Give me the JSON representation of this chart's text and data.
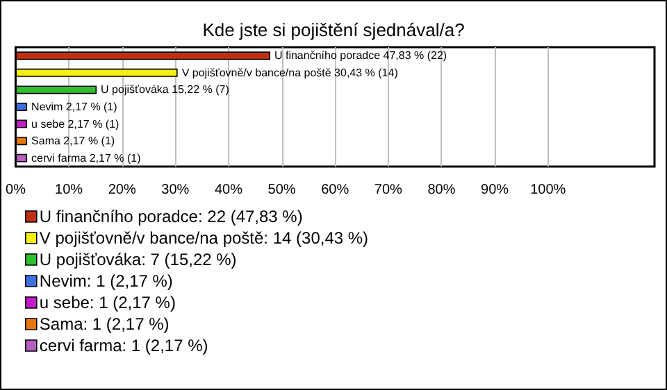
{
  "chart_data": {
    "type": "bar",
    "orientation": "horizontal",
    "stacked": true,
    "title": "Kde jste si pojištění sjednával/a?",
    "categories": [
      null,
      null,
      null,
      null,
      null,
      null,
      null
    ],
    "series": [
      {
        "name": "U finančního poradce: 22 (47,83 %)",
        "color": "#c0300f",
        "values": [
          47.83,
          null,
          null,
          null,
          null,
          null,
          null
        ],
        "value_labels": [
          "U finančního poradce 47,83 % (22)",
          null,
          null,
          null,
          null,
          null,
          null
        ]
      },
      {
        "name": "V pojišťovně/v bance/na poště: 14 (30,43 %)",
        "color": "#f5f010",
        "values": [
          null,
          30.43,
          null,
          null,
          null,
          null,
          null
        ],
        "value_labels": [
          null,
          "V pojišťovně/v bance/na poště 30,43 % (14)",
          null,
          null,
          null,
          null,
          null
        ]
      },
      {
        "name": "U pojišťováka: 7 (15,22 %)",
        "color": "#2ec02e",
        "values": [
          null,
          null,
          15.22,
          null,
          null,
          null,
          null
        ],
        "value_labels": [
          null,
          null,
          "U pojišťováka 15,22 % (7)",
          null,
          null,
          null,
          null
        ]
      },
      {
        "name": "Nevim: 1 (2,17 %)",
        "color": "#3d6fe0",
        "values": [
          null,
          null,
          null,
          2.17,
          null,
          null,
          null
        ],
        "value_labels": [
          null,
          null,
          null,
          "Nevim 2,17 % (1)",
          null,
          null,
          null
        ]
      },
      {
        "name": "u sebe: 1 (2,17 %)",
        "color": "#c21cc8",
        "values": [
          null,
          null,
          null,
          null,
          2.17,
          null,
          null
        ],
        "value_labels": [
          null,
          null,
          null,
          null,
          "u sebe 2,17 % (1)",
          null,
          null
        ]
      },
      {
        "name": "Sama: 1 (2,17 %)",
        "color": "#e6760f",
        "values": [
          null,
          null,
          null,
          null,
          null,
          2.17,
          null
        ],
        "value_labels": [
          null,
          null,
          null,
          null,
          null,
          "Sama 2,17 % (1)",
          null
        ]
      },
      {
        "name": "cervi farma: 1 (2,17 %)",
        "color": "#b45ec0",
        "values": [
          null,
          null,
          null,
          null,
          null,
          null,
          2.17
        ],
        "value_labels": [
          null,
          null,
          null,
          null,
          null,
          null,
          "cervi farma 2,17 % (1)"
        ]
      }
    ],
    "xlim": [
      0,
      120
    ],
    "xticks": [
      {
        "value": 0,
        "label": "0%"
      },
      {
        "value": 10,
        "label": "10%"
      },
      {
        "value": 20,
        "label": "20%"
      },
      {
        "value": 30,
        "label": "30%"
      },
      {
        "value": 40,
        "label": "40%"
      },
      {
        "value": 50,
        "label": "50%"
      },
      {
        "value": 60,
        "label": "60%"
      },
      {
        "value": 70,
        "label": "70%"
      },
      {
        "value": 80,
        "label": "80%"
      },
      {
        "value": 90,
        "label": "90%"
      },
      {
        "value": 100,
        "label": "100%"
      }
    ],
    "grid": "x",
    "legend": "bottom"
  }
}
